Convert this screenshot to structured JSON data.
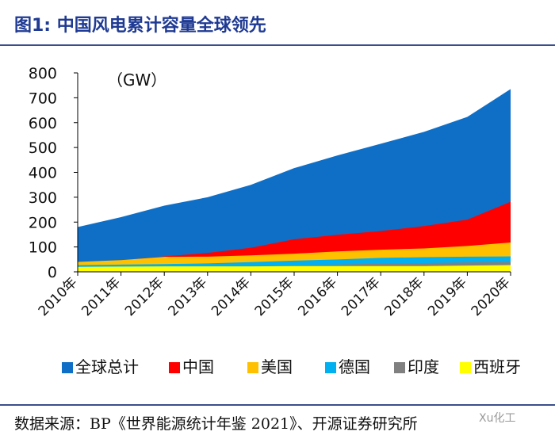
{
  "title": "图1:   中国风电累计容量全球领先",
  "source": "数据来源：BP《世界能源统计年鉴 2021》、开源证券研究所",
  "watermark": "Xu化工",
  "chart_data": {
    "type": "area",
    "unit": "（GW）",
    "categories": [
      "2010年",
      "2011年",
      "2012年",
      "2013年",
      "2014年",
      "2015年",
      "2016年",
      "2017年",
      "2018年",
      "2019年",
      "2020年"
    ],
    "ylim": [
      0,
      800
    ],
    "yticks": [
      0,
      100,
      200,
      300,
      400,
      500,
      600,
      700,
      800
    ],
    "series": [
      {
        "name": "全球总计",
        "color": "#0f6fc6",
        "values": [
          180,
          220,
          266,
          300,
          350,
          417,
          468,
          515,
          563,
          623,
          735
        ]
      },
      {
        "name": "中国",
        "color": "#ff0000",
        "values": [
          30,
          46,
          62,
          76,
          97,
          131,
          149,
          164,
          184,
          210,
          282
        ]
      },
      {
        "name": "美国",
        "color": "#ffc000",
        "values": [
          40,
          47,
          60,
          61,
          66,
          73,
          82,
          89,
          94,
          104,
          118
        ]
      },
      {
        "name": "德国",
        "color": "#00b0f0",
        "values": [
          27,
          29,
          31,
          34,
          39,
          45,
          50,
          56,
          59,
          61,
          62
        ]
      },
      {
        "name": "印度",
        "color": "#808080",
        "values": [
          13,
          16,
          18,
          20,
          22,
          25,
          29,
          33,
          35,
          38,
          39
        ]
      },
      {
        "name": "西班牙",
        "color": "#ffff00",
        "values": [
          20,
          21,
          22,
          22,
          22,
          23,
          23,
          23,
          23,
          25,
          27
        ]
      }
    ]
  }
}
